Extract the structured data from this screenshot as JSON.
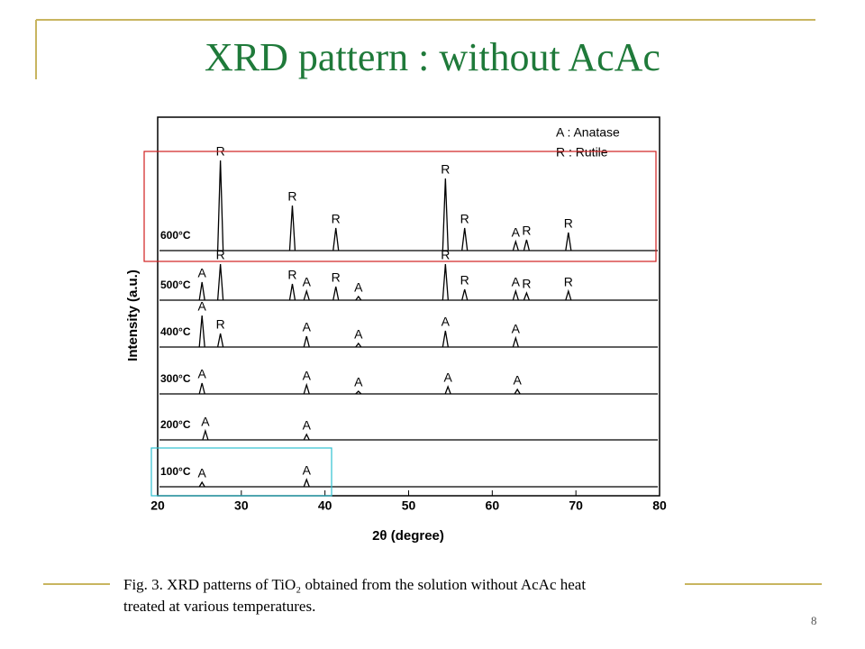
{
  "slide_title": "XRD pattern : without AcAc",
  "caption": [
    "Fig. 3.  XRD patterns of TiO₂ obtained from the solution without AcAc heat",
    "treated at various temperatures."
  ],
  "page_number": "8",
  "chart_data": {
    "type": "xrd",
    "xlabel": "2θ (degree)",
    "ylabel": "Intensity (a.u.)",
    "legend": [
      "A : Anatase",
      "R : Rutile"
    ],
    "xlim": [
      20,
      80
    ],
    "xticks": [
      20,
      30,
      40,
      50,
      60,
      70,
      80
    ],
    "color": "#000000",
    "series": [
      {
        "name": "600°C",
        "x": [
          27.5,
          36.1,
          41.3,
          54.4,
          56.7,
          62.8,
          64.1,
          69.1
        ],
        "values": [
          100,
          50,
          25,
          80,
          25,
          10,
          12,
          20
        ],
        "peak_labels": [
          "R",
          "R",
          "R",
          "R",
          "R",
          "A",
          "R",
          "R"
        ]
      },
      {
        "name": "500°C",
        "x": [
          25.3,
          27.5,
          36.1,
          37.8,
          41.3,
          44.0,
          54.4,
          56.7,
          62.8,
          64.1,
          69.1
        ],
        "values": [
          20,
          40,
          18,
          10,
          15,
          4,
          40,
          12,
          10,
          8,
          10
        ],
        "peak_labels": [
          "A",
          "R",
          "R",
          "A",
          "R",
          "A",
          "R",
          "R",
          "A",
          "R",
          "R"
        ]
      },
      {
        "name": "400°C",
        "x": [
          25.3,
          27.5,
          37.8,
          44.0,
          54.4,
          62.8
        ],
        "values": [
          35,
          15,
          12,
          4,
          18,
          10
        ],
        "peak_labels": [
          "A",
          "R",
          "A",
          "A",
          "A",
          "A"
        ]
      },
      {
        "name": "300°C",
        "x": [
          25.3,
          37.8,
          44.0,
          54.7,
          63.0
        ],
        "values": [
          12,
          10,
          3,
          8,
          5
        ],
        "peak_labels": [
          "A",
          "A",
          "A",
          "A",
          "A"
        ]
      },
      {
        "name": "200°C",
        "x": [
          25.7,
          37.8
        ],
        "values": [
          10,
          6
        ],
        "peak_labels": [
          "A",
          "A"
        ]
      },
      {
        "name": "100°C",
        "x": [
          25.3,
          37.8
        ],
        "values": [
          5,
          8
        ],
        "peak_labels": [
          "A",
          "A"
        ]
      }
    ]
  }
}
